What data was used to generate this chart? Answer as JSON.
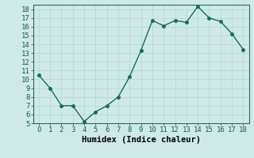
{
  "x": [
    0,
    1,
    2,
    3,
    4,
    5,
    6,
    7,
    8,
    9,
    10,
    11,
    12,
    13,
    14,
    15,
    16,
    17,
    18
  ],
  "y": [
    10.5,
    9.0,
    7.0,
    7.0,
    5.2,
    6.3,
    7.0,
    8.0,
    10.3,
    13.3,
    16.7,
    16.1,
    16.7,
    16.5,
    18.3,
    17.0,
    16.6,
    15.2,
    13.4
  ],
  "line_color": "#1a6b5a",
  "marker_color": "#1a6b5a",
  "bg_color": "#ceeae8",
  "grid_color": "#b8d8d5",
  "xlabel": "Humidex (Indice chaleur)",
  "xlim": [
    -0.5,
    18.5
  ],
  "ylim": [
    5,
    18.5
  ],
  "xticks": [
    0,
    1,
    2,
    3,
    4,
    5,
    6,
    7,
    8,
    9,
    10,
    11,
    12,
    13,
    14,
    15,
    16,
    17,
    18
  ],
  "yticks": [
    5,
    6,
    7,
    8,
    9,
    10,
    11,
    12,
    13,
    14,
    15,
    16,
    17,
    18
  ],
  "xlabel_fontsize": 7.5,
  "tick_fontsize": 6.5,
  "marker_size": 2.5,
  "line_width": 1.0
}
